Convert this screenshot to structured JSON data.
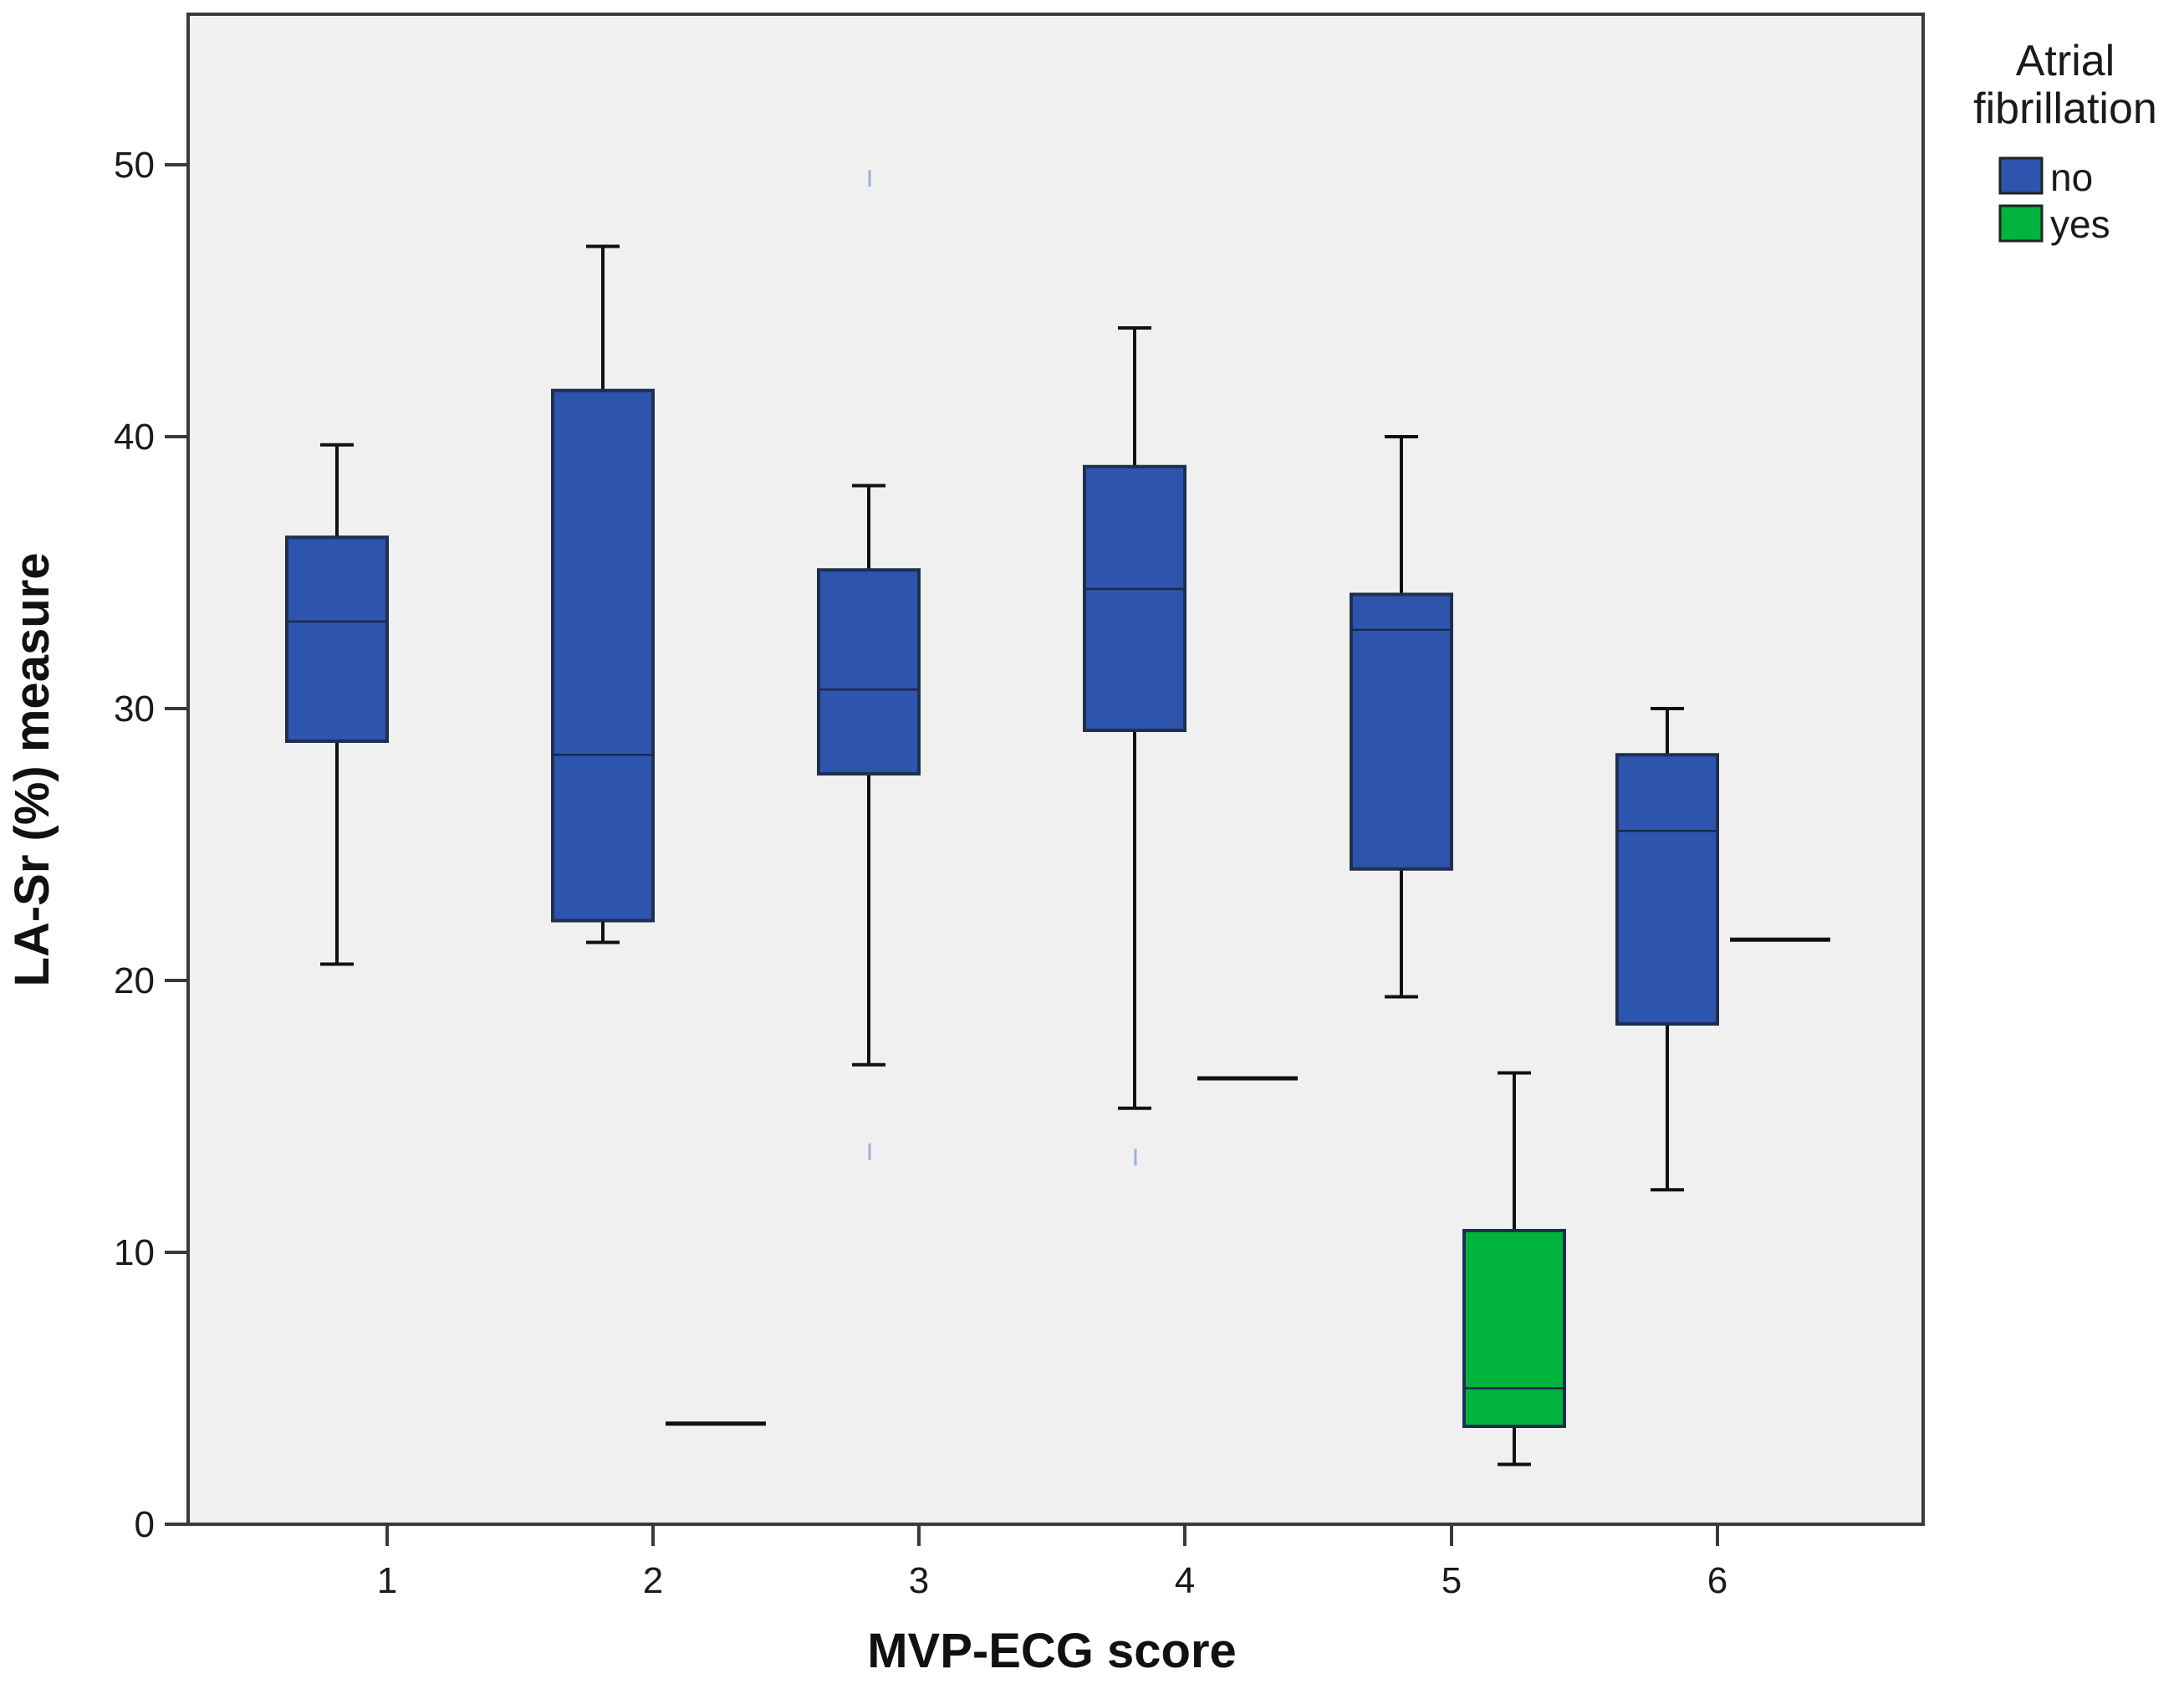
{
  "chart_data": {
    "type": "boxplot",
    "xlabel": "MVP-ECG score",
    "ylabel": "LA-Sr (%) measure",
    "ylim": [
      0,
      55
    ],
    "yticks": [
      0,
      10,
      20,
      30,
      40,
      50
    ],
    "categories": [
      "1",
      "2",
      "3",
      "4",
      "5",
      "6"
    ],
    "grid": false,
    "legend": {
      "title_line1": "Atrial",
      "title_line2": "fibrillation",
      "position": "right"
    },
    "series": [
      {
        "name": "no",
        "color": "#2d55ae",
        "boxes": [
          {
            "category": "1",
            "whisker_low": 20.6,
            "q1": 28.8,
            "median": 33.2,
            "q3": 36.3,
            "whisker_high": 39.7
          },
          {
            "category": "2",
            "whisker_low": 21.4,
            "q1": 22.2,
            "median": 28.3,
            "q3": 41.7,
            "whisker_high": 47.0
          },
          {
            "category": "3",
            "whisker_low": 16.9,
            "q1": 27.6,
            "median": 30.7,
            "q3": 35.1,
            "whisker_high": 38.2
          },
          {
            "category": "4",
            "whisker_low": 15.3,
            "q1": 29.2,
            "median": 34.4,
            "q3": 38.9,
            "whisker_high": 44.0
          },
          {
            "category": "5",
            "whisker_low": 19.4,
            "q1": 24.1,
            "median": 32.9,
            "q3": 34.2,
            "whisker_high": 40.0
          },
          {
            "category": "6",
            "whisker_low": 12.3,
            "q1": 18.4,
            "median": 25.5,
            "q3": 28.3,
            "whisker_high": 30.0
          }
        ]
      },
      {
        "name": "yes",
        "color": "#00b33c",
        "boxes": [
          {
            "category": "2",
            "whisker_low": 3.7,
            "q1": 3.7,
            "median": 3.7,
            "q3": 3.7,
            "whisker_high": 3.7
          },
          {
            "category": "4",
            "whisker_low": 16.4,
            "q1": 16.4,
            "median": 16.4,
            "q3": 16.4,
            "whisker_high": 16.4
          },
          {
            "category": "5",
            "whisker_low": 2.2,
            "q1": 3.6,
            "median": 5.0,
            "q3": 10.8,
            "whisker_high": 16.6
          },
          {
            "category": "6",
            "whisker_low": 21.5,
            "q1": 21.5,
            "median": 21.5,
            "q3": 21.5,
            "whisker_high": 21.5
          }
        ]
      }
    ],
    "stray_marks": [
      {
        "category": "3",
        "value": 49.5
      },
      {
        "category": "3",
        "value": 13.7
      },
      {
        "category": "4",
        "value": 13.5
      }
    ]
  }
}
